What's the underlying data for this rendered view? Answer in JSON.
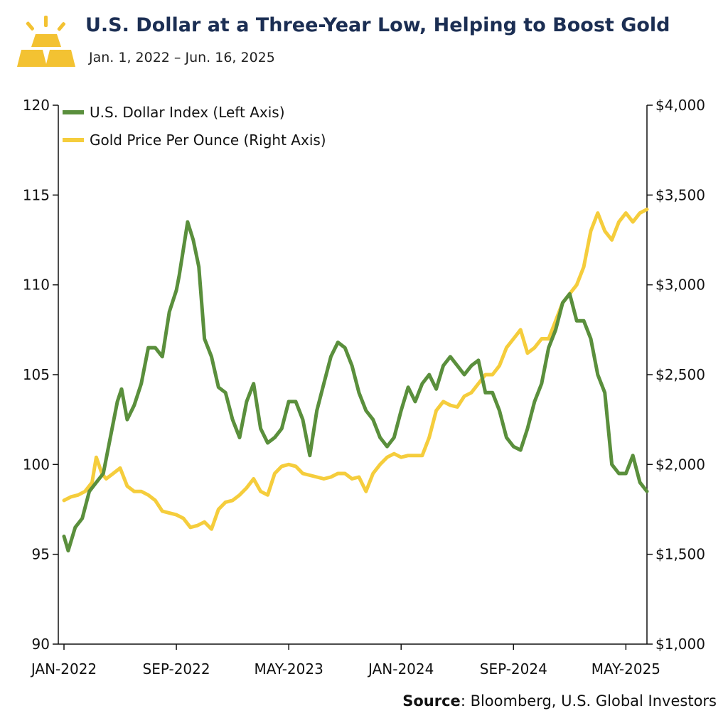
{
  "header": {
    "title": "U.S. Dollar at a Three-Year Low, Helping to Boost Gold",
    "subtitle": "Jan. 1, 2022 – Jun. 16, 2025",
    "logo_icon": "gold-bars-icon"
  },
  "source": {
    "label": "Source",
    "text": ": Bloomberg, U.S. Global Investors"
  },
  "colors": {
    "dollar": "#5a8f3c",
    "gold": "#f5cd3c",
    "title": "#1b2e53",
    "logo": "#f3c232"
  },
  "chart_data": {
    "type": "line",
    "title": "U.S. Dollar at a Three-Year Low, Helping to Boost Gold",
    "x_labels": [
      "JAN-2022",
      "SEP-2022",
      "MAY-2023",
      "JAN-2024",
      "SEP-2024",
      "MAY-2025"
    ],
    "x_label_month_index": [
      0,
      8,
      16,
      24,
      32,
      40
    ],
    "x_range_months": [
      0,
      41.5
    ],
    "left_axis": {
      "ylim": [
        90,
        120
      ],
      "ticks": [
        90,
        95,
        100,
        105,
        110,
        115,
        120
      ],
      "tick_labels": [
        "90",
        "95",
        "100",
        "105",
        "110",
        "115",
        "120"
      ]
    },
    "right_axis": {
      "ylim": [
        1000,
        4000
      ],
      "ticks": [
        1000,
        1500,
        2000,
        2500,
        3000,
        3500,
        4000
      ],
      "tick_labels": [
        "$1,000",
        "$1,500",
        "$2,000",
        "$2,500",
        "$3,000",
        "$3,500",
        "$4,000"
      ]
    },
    "legend": [
      "U.S. Dollar Index (Left Axis)",
      "Gold Price Per Ounce (Right Axis)"
    ],
    "series": [
      {
        "name": "U.S. Dollar Index (Left Axis)",
        "axis": "left",
        "x_months": [
          0,
          0.3,
          0.8,
          1.3,
          1.8,
          2.3,
          2.8,
          3.3,
          3.8,
          4.1,
          4.5,
          5.0,
          5.5,
          6.0,
          6.5,
          7.0,
          7.5,
          8.0,
          8.2,
          8.5,
          8.8,
          9.2,
          9.6,
          10.0,
          10.5,
          11.0,
          11.5,
          12.0,
          12.5,
          13.0,
          13.5,
          14.0,
          14.5,
          15.0,
          15.5,
          16.0,
          16.5,
          17.0,
          17.5,
          18.0,
          18.5,
          19.0,
          19.5,
          20.0,
          20.5,
          21.0,
          21.5,
          22.0,
          22.5,
          23.0,
          23.5,
          24.0,
          24.5,
          25.0,
          25.5,
          26.0,
          26.5,
          27.0,
          27.5,
          28.0,
          28.5,
          29.0,
          29.5,
          30.0,
          30.5,
          31.0,
          31.5,
          32.0,
          32.5,
          33.0,
          33.5,
          34.0,
          34.5,
          35.0,
          35.5,
          36.0,
          36.5,
          37.0,
          37.5,
          38.0,
          38.5,
          39.0,
          39.5,
          40.0,
          40.5,
          41.0,
          41.5
        ],
        "values": [
          96.0,
          95.2,
          96.5,
          97.0,
          98.5,
          99.0,
          99.5,
          101.5,
          103.5,
          104.2,
          102.5,
          103.3,
          104.5,
          106.5,
          106.5,
          106.0,
          108.5,
          109.7,
          110.5,
          112.0,
          113.5,
          112.5,
          111.0,
          107.0,
          106.0,
          104.3,
          104.0,
          102.5,
          101.5,
          103.5,
          104.5,
          102.0,
          101.2,
          101.5,
          102.0,
          103.5,
          103.5,
          102.5,
          100.5,
          103.0,
          104.5,
          106.0,
          106.8,
          106.5,
          105.5,
          104.0,
          103.0,
          102.5,
          101.5,
          101.0,
          101.5,
          103.0,
          104.3,
          103.5,
          104.5,
          105.0,
          104.2,
          105.5,
          106.0,
          105.5,
          105.0,
          105.5,
          105.8,
          104.0,
          104.0,
          103.0,
          101.5,
          101.0,
          100.8,
          102.0,
          103.5,
          104.5,
          106.5,
          107.5,
          109.0,
          109.5,
          108.0,
          108.0,
          107.0,
          105.0,
          104.0,
          100.0,
          99.5,
          99.5,
          100.5,
          99.0,
          98.5
        ]
      },
      {
        "name": "Gold Price Per Ounce (Right Axis)",
        "axis": "right",
        "x_months": [
          0,
          0.5,
          1.0,
          1.5,
          2.0,
          2.3,
          2.7,
          3.0,
          3.5,
          4.0,
          4.5,
          5.0,
          5.5,
          6.0,
          6.5,
          7.0,
          7.5,
          8.0,
          8.5,
          9.0,
          9.5,
          10.0,
          10.5,
          11.0,
          11.5,
          12.0,
          12.5,
          13.0,
          13.5,
          14.0,
          14.5,
          15.0,
          15.5,
          16.0,
          16.5,
          17.0,
          17.5,
          18.0,
          18.5,
          19.0,
          19.5,
          20.0,
          20.5,
          21.0,
          21.5,
          22.0,
          22.5,
          23.0,
          23.5,
          24.0,
          24.5,
          25.0,
          25.5,
          26.0,
          26.5,
          27.0,
          27.5,
          28.0,
          28.5,
          29.0,
          29.5,
          30.0,
          30.5,
          31.0,
          31.5,
          32.0,
          32.5,
          33.0,
          33.5,
          34.0,
          34.5,
          35.0,
          35.5,
          36.0,
          36.5,
          37.0,
          37.5,
          38.0,
          38.5,
          39.0,
          39.5,
          40.0,
          40.5,
          41.0,
          41.5
        ],
        "values": [
          1800,
          1820,
          1830,
          1850,
          1900,
          2040,
          1950,
          1920,
          1950,
          1980,
          1880,
          1850,
          1850,
          1830,
          1800,
          1740,
          1730,
          1720,
          1700,
          1650,
          1660,
          1680,
          1640,
          1750,
          1790,
          1800,
          1830,
          1870,
          1920,
          1850,
          1830,
          1950,
          1990,
          2000,
          1990,
          1950,
          1940,
          1930,
          1920,
          1930,
          1950,
          1950,
          1920,
          1930,
          1850,
          1950,
          2000,
          2040,
          2060,
          2040,
          2050,
          2050,
          2050,
          2150,
          2300,
          2350,
          2330,
          2320,
          2380,
          2400,
          2450,
          2500,
          2500,
          2550,
          2650,
          2700,
          2750,
          2620,
          2650,
          2700,
          2700,
          2800,
          2900,
          2950,
          3000,
          3100,
          3300,
          3400,
          3300,
          3250,
          3350,
          3400,
          3350,
          3400,
          3420
        ]
      }
    ]
  }
}
